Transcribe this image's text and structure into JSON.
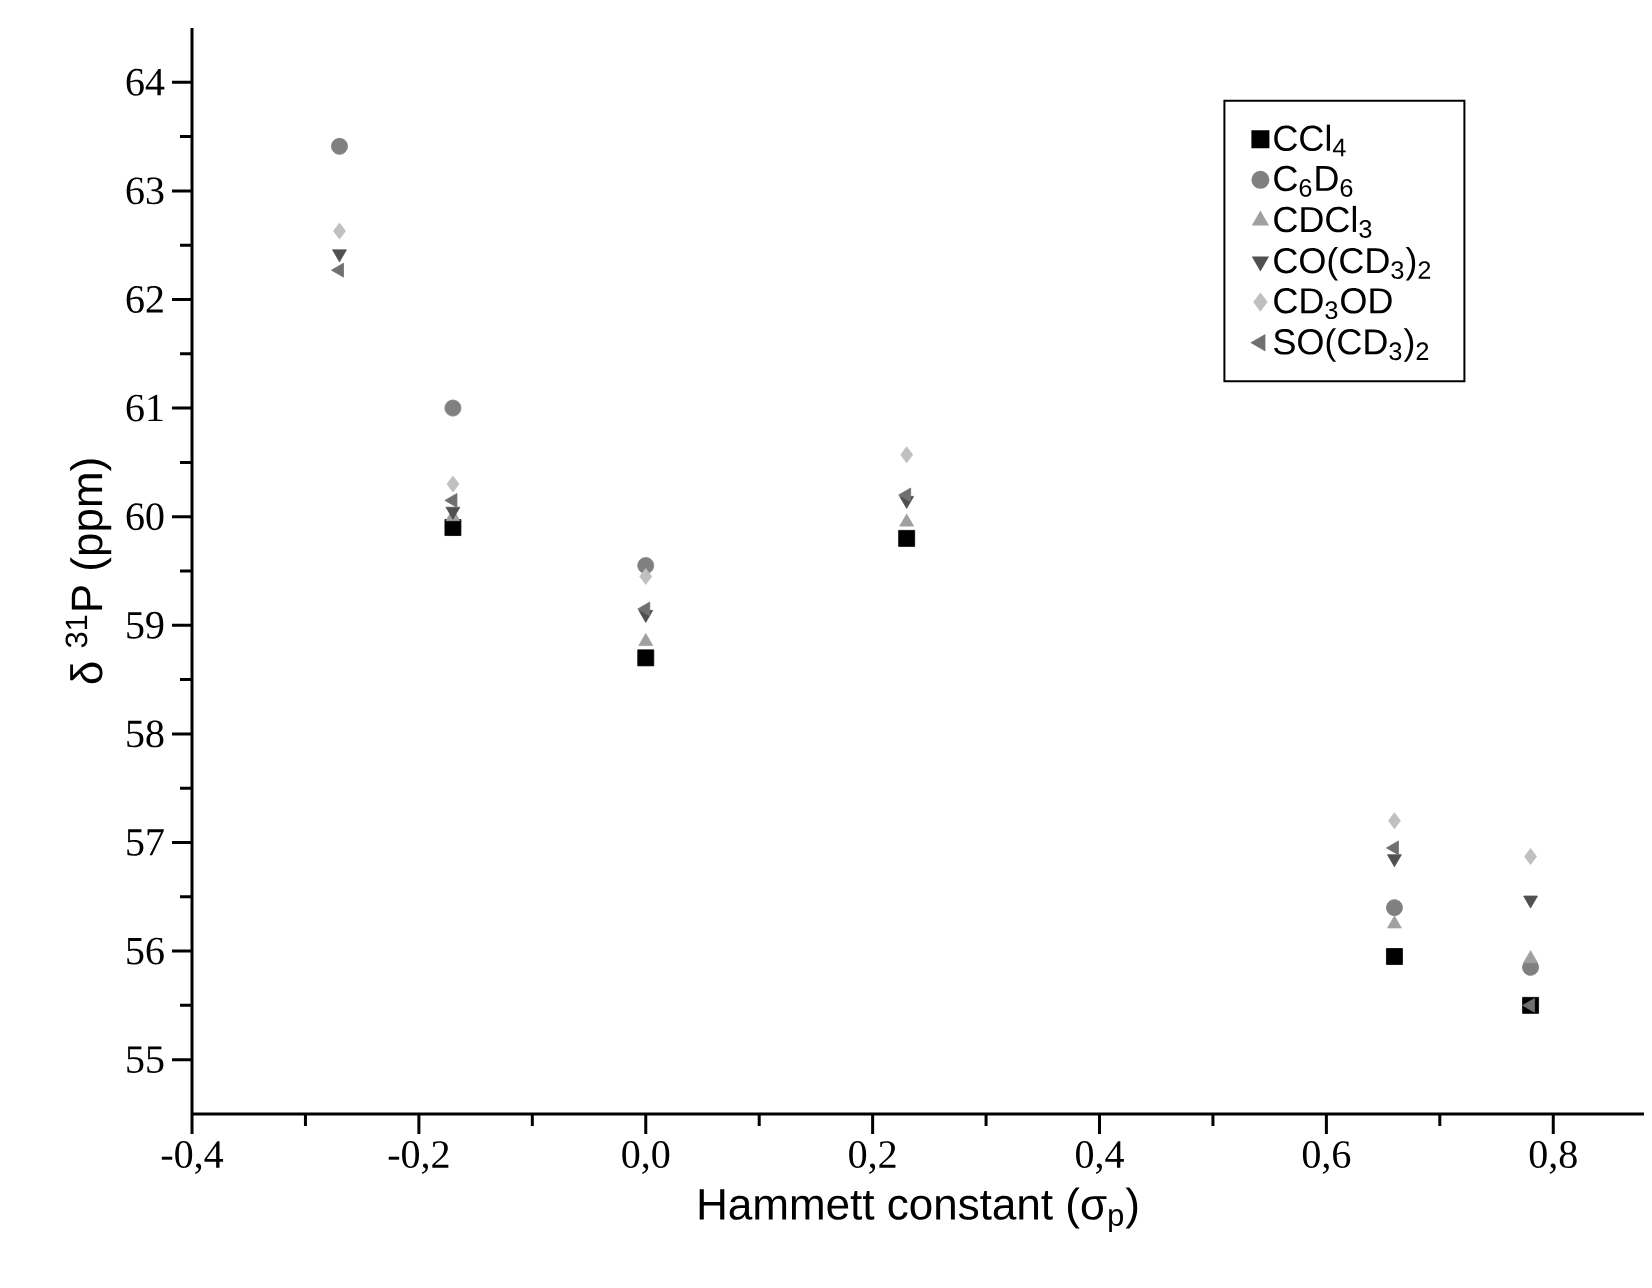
{
  "chart_data": {
    "type": "scatter",
    "xlabel": "Hammett constant (σ$_{p}$)",
    "ylabel": "δ $^{31}$P (ppm)",
    "x": [
      -0.27,
      -0.17,
      0.0,
      0.23,
      0.66,
      0.78
    ],
    "series": [
      {
        "name": "CCl$_{4}$",
        "color": "#000000",
        "marker": "square",
        "values": [
          null,
          59.9,
          58.7,
          59.8,
          55.95,
          55.5
        ]
      },
      {
        "name": "C$_{6}$D$_{6}$",
        "color": "#808080",
        "marker": "circle",
        "values": [
          63.41,
          61.0,
          59.55,
          null,
          56.4,
          55.85
        ]
      },
      {
        "name": "CDCl$_{3}$",
        "color": "#a0a0a0",
        "marker": "triangle",
        "values": [
          null,
          60.0,
          58.85,
          59.95,
          56.25,
          55.93
        ]
      },
      {
        "name": "CO(CD$_{3}$)$_{2}$",
        "color": "#505050",
        "marker": "triangle down",
        "values": [
          62.42,
          60.05,
          59.1,
          60.15,
          56.85,
          56.47
        ]
      },
      {
        "name": "CD$_{3}$OD",
        "color": "#c0c0c0",
        "marker": "diamond",
        "values": [
          62.63,
          60.3,
          59.45,
          60.57,
          57.2,
          56.87
        ]
      },
      {
        "name": "SO(CD$_{3}$)$_{2}$",
        "color": "#707070",
        "marker": "triangle left",
        "values": [
          62.27,
          60.15,
          59.15,
          60.2,
          56.95,
          55.5
        ]
      }
    ],
    "xlim": [
      -0.4,
      0.88
    ],
    "ylim": [
      54.5,
      64.5
    ],
    "xticks": [
      {
        "value": -0.4,
        "label": "-0,4"
      },
      {
        "value": -0.2,
        "label": "-0,2"
      },
      {
        "value": 0.0,
        "label": "0,0"
      },
      {
        "value": 0.2,
        "label": "0,2"
      },
      {
        "value": 0.4,
        "label": "0,4"
      },
      {
        "value": 0.6,
        "label": "0,6"
      },
      {
        "value": 0.8,
        "label": "0,8"
      }
    ],
    "yticks": [
      55,
      56,
      57,
      58,
      59,
      60,
      61,
      62,
      63,
      64
    ],
    "legend": "top right",
    "grid": false
  }
}
